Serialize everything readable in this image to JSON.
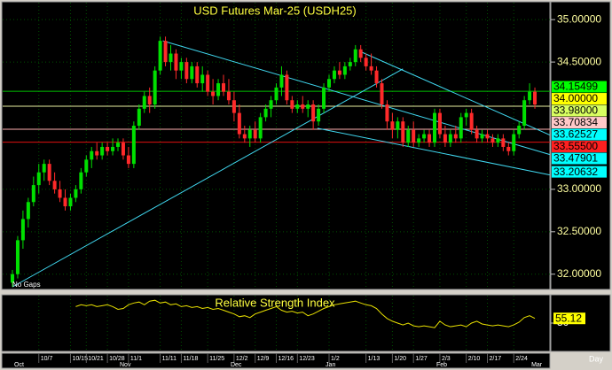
{
  "chart_data": {
    "type": "candlestick",
    "title": "USD Futures Mar-25 (USDH25)",
    "gap_label": "No Gaps",
    "period_label": "Day",
    "up_color": "#00e000",
    "down_color": "#ff2a2a",
    "grid": true,
    "xlim": [
      -1.85,
      101.85
    ],
    "ylim": [
      31.82,
      35.2
    ],
    "yticks": [
      {
        "value": 35,
        "label": "35.00000"
      },
      {
        "value": 34.5,
        "label": "34.50000"
      },
      {
        "value": 33,
        "label": "33.00000"
      },
      {
        "value": 32.5,
        "label": "32.50000"
      },
      {
        "value": 32,
        "label": "32.00000"
      }
    ],
    "xticks": [
      {
        "value": 5,
        "label": "10/7"
      },
      {
        "value": 11,
        "label": "10/15"
      },
      {
        "value": 14,
        "label": "10/21"
      },
      {
        "value": 18,
        "label": "10/28"
      },
      {
        "value": 22,
        "label": "11/1"
      },
      {
        "value": 28,
        "label": "11/11"
      },
      {
        "value": 32,
        "label": "11/18"
      },
      {
        "value": 37,
        "label": "11/25"
      },
      {
        "value": 42,
        "label": "12/2"
      },
      {
        "value": 46,
        "label": "12/9"
      },
      {
        "value": 50,
        "label": "12/16"
      },
      {
        "value": 54,
        "label": "12/23"
      },
      {
        "value": 60,
        "label": "1/2"
      },
      {
        "value": 67,
        "label": "1/13"
      },
      {
        "value": 72,
        "label": "1/20"
      },
      {
        "value": 76,
        "label": "1/27"
      },
      {
        "value": 81,
        "label": "2/3"
      },
      {
        "value": 86,
        "label": "2/10"
      },
      {
        "value": 90,
        "label": "2/17"
      },
      {
        "value": 95,
        "label": "2/24"
      }
    ],
    "month_ticks": [
      {
        "value": 0,
        "label": "Oct"
      },
      {
        "value": 20,
        "label": "Nov"
      },
      {
        "value": 41,
        "label": "Dec"
      },
      {
        "value": 59,
        "label": "Jan"
      },
      {
        "value": 80,
        "label": "Feb"
      },
      {
        "value": 98,
        "label": "Mar"
      }
    ],
    "candles": [
      [
        31.9,
        32.05,
        31.85,
        32.0
      ],
      [
        32.0,
        32.45,
        31.95,
        32.4
      ],
      [
        32.4,
        32.75,
        32.3,
        32.65
      ],
      [
        32.65,
        32.9,
        32.55,
        32.85
      ],
      [
        32.85,
        33.15,
        32.8,
        33.05
      ],
      [
        33.05,
        33.3,
        32.95,
        33.2
      ],
      [
        33.2,
        33.35,
        33.1,
        33.3
      ],
      [
        33.3,
        33.35,
        33.05,
        33.1
      ],
      [
        33.1,
        33.2,
        32.95,
        33.0
      ],
      [
        33.0,
        33.1,
        32.85,
        32.9
      ],
      [
        32.9,
        33.0,
        32.75,
        32.8
      ],
      [
        32.8,
        32.95,
        32.75,
        32.9
      ],
      [
        32.9,
        33.05,
        32.85,
        33.0
      ],
      [
        33.0,
        33.25,
        32.95,
        33.2
      ],
      [
        33.2,
        33.4,
        33.15,
        33.35
      ],
      [
        33.35,
        33.5,
        33.25,
        33.45
      ],
      [
        33.45,
        33.55,
        33.35,
        33.4
      ],
      [
        33.4,
        33.55,
        33.35,
        33.5
      ],
      [
        33.5,
        33.55,
        33.4,
        33.45
      ],
      [
        33.45,
        33.6,
        33.4,
        33.5
      ],
      [
        33.5,
        33.6,
        33.45,
        33.55
      ],
      [
        33.55,
        33.6,
        33.35,
        33.4
      ],
      [
        33.4,
        33.5,
        33.25,
        33.3
      ],
      [
        33.3,
        33.8,
        33.25,
        33.75
      ],
      [
        33.75,
        34.0,
        33.7,
        33.95
      ],
      [
        33.95,
        34.15,
        33.9,
        34.1
      ],
      [
        34.1,
        34.2,
        33.9,
        34.0
      ],
      [
        34.0,
        34.45,
        33.95,
        34.4
      ],
      [
        34.4,
        34.8,
        34.35,
        34.75
      ],
      [
        34.75,
        34.8,
        34.45,
        34.5
      ],
      [
        34.5,
        34.7,
        34.4,
        34.6
      ],
      [
        34.6,
        34.65,
        34.3,
        34.4
      ],
      [
        34.4,
        34.55,
        34.3,
        34.5
      ],
      [
        34.5,
        34.55,
        34.25,
        34.3
      ],
      [
        34.3,
        34.5,
        34.25,
        34.45
      ],
      [
        34.45,
        34.5,
        34.2,
        34.25
      ],
      [
        34.25,
        34.45,
        34.15,
        34.35
      ],
      [
        34.35,
        34.4,
        34.1,
        34.15
      ],
      [
        34.15,
        34.3,
        34.0,
        34.1
      ],
      [
        34.1,
        34.3,
        34.05,
        34.25
      ],
      [
        34.25,
        34.35,
        34.1,
        34.15
      ],
      [
        34.15,
        34.3,
        34.0,
        34.05
      ],
      [
        34.05,
        34.15,
        33.8,
        33.9
      ],
      [
        33.9,
        34.0,
        33.6,
        33.65
      ],
      [
        33.65,
        33.75,
        33.55,
        33.6
      ],
      [
        33.6,
        33.75,
        33.5,
        33.7
      ],
      [
        33.7,
        33.8,
        33.55,
        33.6
      ],
      [
        33.6,
        33.9,
        33.55,
        33.85
      ],
      [
        33.85,
        34.0,
        33.8,
        33.95
      ],
      [
        33.95,
        34.1,
        33.85,
        34.05
      ],
      [
        34.05,
        34.25,
        34.0,
        34.2
      ],
      [
        34.2,
        34.45,
        34.1,
        34.35
      ],
      [
        34.35,
        34.4,
        34.0,
        34.05
      ],
      [
        34.05,
        34.1,
        33.9,
        33.95
      ],
      [
        33.95,
        34.05,
        33.9,
        34.0
      ],
      [
        34.0,
        34.1,
        33.9,
        33.95
      ],
      [
        33.95,
        34.05,
        33.85,
        34.0
      ],
      [
        34.0,
        34.05,
        33.7,
        33.8
      ],
      [
        33.8,
        34.0,
        33.75,
        33.95
      ],
      [
        33.95,
        34.25,
        33.9,
        34.2
      ],
      [
        34.2,
        34.35,
        34.15,
        34.3
      ],
      [
        34.3,
        34.45,
        34.25,
        34.4
      ],
      [
        34.4,
        34.5,
        34.3,
        34.35
      ],
      [
        34.35,
        34.5,
        34.3,
        34.45
      ],
      [
        34.45,
        34.55,
        34.4,
        34.5
      ],
      [
        34.5,
        34.7,
        34.45,
        34.65
      ],
      [
        34.65,
        34.7,
        34.5,
        34.55
      ],
      [
        34.55,
        34.6,
        34.4,
        34.45
      ],
      [
        34.45,
        34.6,
        34.35,
        34.4
      ],
      [
        34.4,
        34.45,
        34.2,
        34.25
      ],
      [
        34.25,
        34.3,
        33.95,
        34.0
      ],
      [
        34.0,
        34.05,
        33.7,
        33.8
      ],
      [
        33.8,
        33.9,
        33.6,
        33.7
      ],
      [
        33.7,
        33.85,
        33.6,
        33.8
      ],
      [
        33.8,
        33.85,
        33.5,
        33.55
      ],
      [
        33.55,
        33.75,
        33.5,
        33.7
      ],
      [
        33.7,
        33.8,
        33.5,
        33.55
      ],
      [
        33.55,
        33.65,
        33.5,
        33.6
      ],
      [
        33.6,
        33.7,
        33.55,
        33.65
      ],
      [
        33.65,
        33.7,
        33.5,
        33.55
      ],
      [
        33.55,
        33.95,
        33.5,
        33.9
      ],
      [
        33.9,
        33.95,
        33.6,
        33.65
      ],
      [
        33.65,
        33.75,
        33.5,
        33.55
      ],
      [
        33.55,
        33.7,
        33.5,
        33.65
      ],
      [
        33.65,
        33.75,
        33.55,
        33.6
      ],
      [
        33.6,
        33.9,
        33.55,
        33.85
      ],
      [
        33.85,
        33.95,
        33.75,
        33.9
      ],
      [
        33.9,
        33.95,
        33.65,
        33.7
      ],
      [
        33.7,
        33.75,
        33.55,
        33.6
      ],
      [
        33.6,
        33.7,
        33.55,
        33.65
      ],
      [
        33.65,
        33.7,
        33.55,
        33.6
      ],
      [
        33.6,
        33.65,
        33.5,
        33.55
      ],
      [
        33.55,
        33.65,
        33.5,
        33.6
      ],
      [
        33.6,
        33.65,
        33.45,
        33.5
      ],
      [
        33.5,
        33.55,
        33.4,
        33.45
      ],
      [
        33.45,
        33.7,
        33.4,
        33.65
      ],
      [
        33.65,
        33.8,
        33.6,
        33.75
      ],
      [
        33.75,
        34.1,
        33.7,
        34.05
      ],
      [
        34.05,
        34.25,
        34.0,
        34.15
      ],
      [
        34.15,
        34.2,
        33.95,
        34.0
      ]
    ],
    "levels": [
      {
        "value": 34.15499,
        "label": "34.15499",
        "color": "#00ff00",
        "line_color": "#00c000"
      },
      {
        "value": 34.0,
        "label": "34.00000",
        "color": "#ffff00"
      },
      {
        "value": 33.98,
        "label": "33.98000",
        "color": "#d8ff60",
        "line_color": "#e8f0a0"
      },
      {
        "value": 33.70834,
        "label": "33.70834",
        "color": "#ffc8c8",
        "line_color": "#ffb0b0"
      },
      {
        "value": 33.62527,
        "label": "33.62527",
        "color": "#00ffff"
      },
      {
        "value": 33.555,
        "label": "33.55500",
        "color": "#ff2020",
        "line_color": "#e01010"
      },
      {
        "value": 33.47901,
        "label": "33.47901",
        "color": "#00ffff"
      },
      {
        "value": 33.20632,
        "label": "33.20632",
        "color": "#00ffff"
      }
    ],
    "trendlines": [
      {
        "points": [
          [
            0,
            31.85
          ],
          [
            74,
            34.42
          ]
        ],
        "color": "#40d8f0"
      },
      {
        "points": [
          [
            28.5,
            34.75
          ],
          [
            101.85,
            33.41
          ]
        ],
        "color": "#40d8f0"
      },
      {
        "points": [
          [
            65.7,
            34.63
          ],
          [
            101.85,
            33.64
          ]
        ],
        "color": "#40d8f0"
      },
      {
        "points": [
          [
            57.8,
            33.72
          ],
          [
            101.85,
            33.17
          ]
        ],
        "color": "#40d8f0"
      }
    ],
    "rsi": {
      "title": "Relative Strength Index",
      "color": "#e8e000",
      "ylim": [
        20,
        80
      ],
      "yticks": [
        50
      ],
      "values": [
        null,
        null,
        null,
        null,
        null,
        null,
        null,
        null,
        null,
        null,
        null,
        null,
        68,
        70,
        69,
        70,
        68,
        69,
        70,
        68,
        65,
        66,
        70,
        72,
        73,
        70,
        74,
        75,
        72,
        73,
        70,
        71,
        68,
        69,
        67,
        68,
        66,
        67,
        65,
        66,
        64,
        62,
        60,
        57,
        58,
        56,
        60,
        62,
        64,
        66,
        68,
        64,
        62,
        63,
        61,
        62,
        58,
        60,
        63,
        66,
        68,
        70,
        71,
        72,
        73,
        74,
        72,
        70,
        69,
        66,
        60,
        55,
        52,
        50,
        48,
        50,
        47,
        46,
        47,
        46,
        45,
        52,
        48,
        46,
        47,
        48,
        46,
        50,
        52,
        49,
        48,
        47,
        48,
        47,
        46,
        48,
        51,
        56,
        58,
        55.12
      ]
    }
  }
}
